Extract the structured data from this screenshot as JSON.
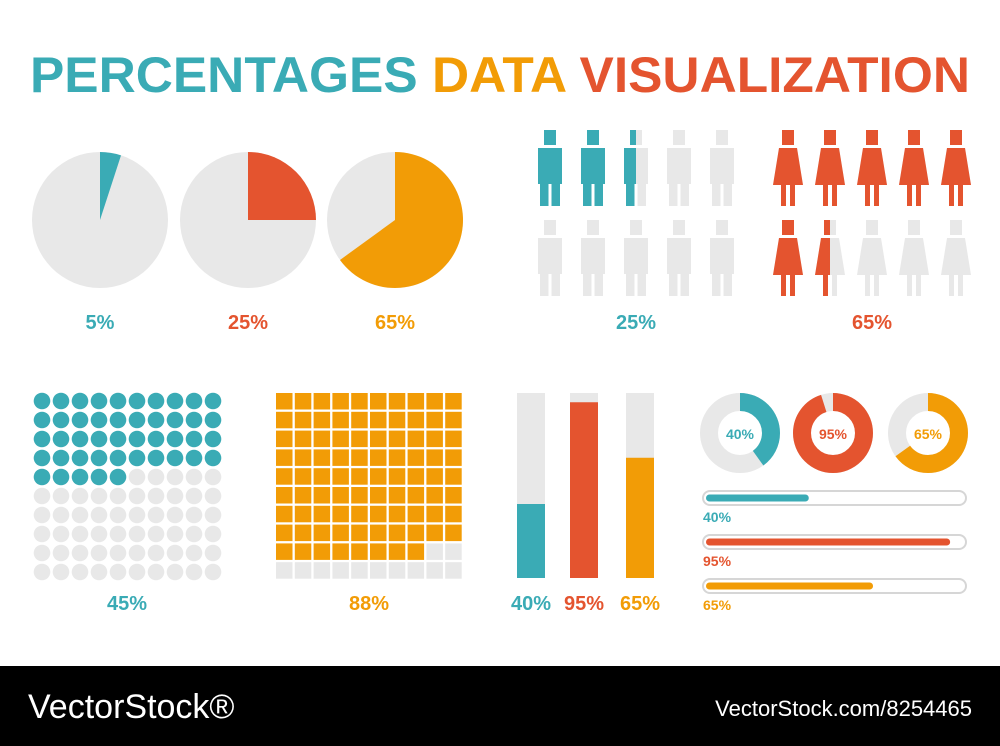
{
  "title": {
    "parts": [
      {
        "text": "PERCENTAGES",
        "color": "#3aabb5"
      },
      {
        "text": "DATA",
        "color": "#f29c06"
      },
      {
        "text": "VISUALIZATION",
        "color": "#e4542f"
      }
    ]
  },
  "chart_data": [
    {
      "type": "pie",
      "values": [
        5,
        25,
        65
      ],
      "value_labels": [
        "5%",
        "25%",
        "65%"
      ],
      "colors": [
        "#3aabb5",
        "#e4542f",
        "#f29c06"
      ],
      "track_color": "#e8e8e8"
    },
    {
      "type": "pictograph",
      "values": [
        25,
        65
      ],
      "value_labels": [
        "25%",
        "65%"
      ],
      "colors": [
        "#3aabb5",
        "#e4542f"
      ],
      "icons": [
        "male",
        "female"
      ],
      "track_color": "#e8e8e8"
    },
    {
      "type": "waffle",
      "values": [
        45,
        88
      ],
      "value_labels": [
        "45%",
        "88%"
      ],
      "colors": [
        "#3aabb5",
        "#f29c06"
      ],
      "shapes": [
        "circle",
        "square"
      ],
      "track_color": "#e8e8e8"
    },
    {
      "type": "bar",
      "values": [
        40,
        95,
        65
      ],
      "value_labels": [
        "40%",
        "95%",
        "65%"
      ],
      "colors": [
        "#3aabb5",
        "#e4542f",
        "#f29c06"
      ],
      "ylim": [
        0,
        100
      ],
      "track_color": "#e8e8e8"
    },
    {
      "type": "donut",
      "values": [
        40,
        95,
        65
      ],
      "value_labels": [
        "40%",
        "95%",
        "65%"
      ],
      "colors": [
        "#3aabb5",
        "#e4542f",
        "#f29c06"
      ],
      "track_color": "#e8e8e8"
    },
    {
      "type": "progress",
      "values": [
        40,
        95,
        65
      ],
      "value_labels": [
        "40%",
        "95%",
        "65%"
      ],
      "colors": [
        "#3aabb5",
        "#e4542f",
        "#f29c06"
      ],
      "track_color": "#e8e8e8"
    }
  ],
  "footer": {
    "brand": "VectorStock®",
    "id": "VectorStock.com/8254465"
  }
}
